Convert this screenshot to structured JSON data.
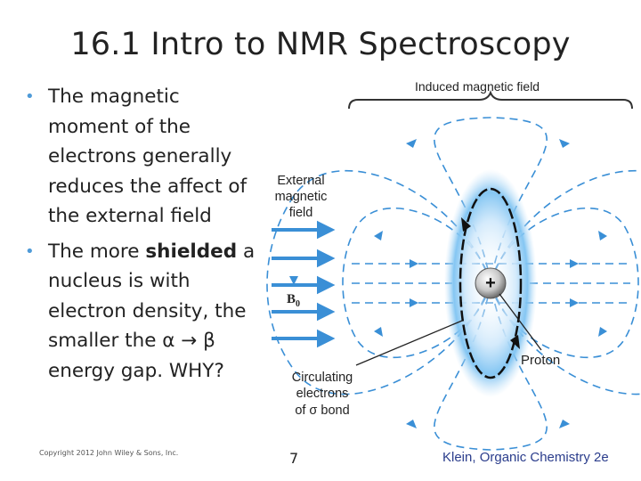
{
  "title": "16.1 Intro to NMR Spectroscopy",
  "bullets": [
    {
      "pre": "The magnetic moment of the electrons generally reduces the affect of the external field",
      "bold": "",
      "post": ""
    },
    {
      "pre": "The more ",
      "bold": "shielded",
      "post": " a nucleus is with electron density, the smaller the α → β energy gap. WHY?"
    }
  ],
  "figure": {
    "induced_label": "Induced magnetic field",
    "external_label": [
      "External",
      "magnetic",
      "field"
    ],
    "b0_label": "B",
    "b0_sub": "0",
    "proton_label": "Proton",
    "proton_symbol": "+",
    "circ_label": [
      "Circulating",
      "electrons",
      "of σ bond"
    ]
  },
  "footer": {
    "copyright": "Copyright 2012 John Wiley & Sons, Inc.",
    "page": "7",
    "credit": "Klein, Organic Chemistry 2e"
  },
  "colors": {
    "field_lines": "#3a8fd6",
    "glow": "#7ec3f2",
    "bullet": "#4f9bd8",
    "credit": "#2b3d8c"
  }
}
